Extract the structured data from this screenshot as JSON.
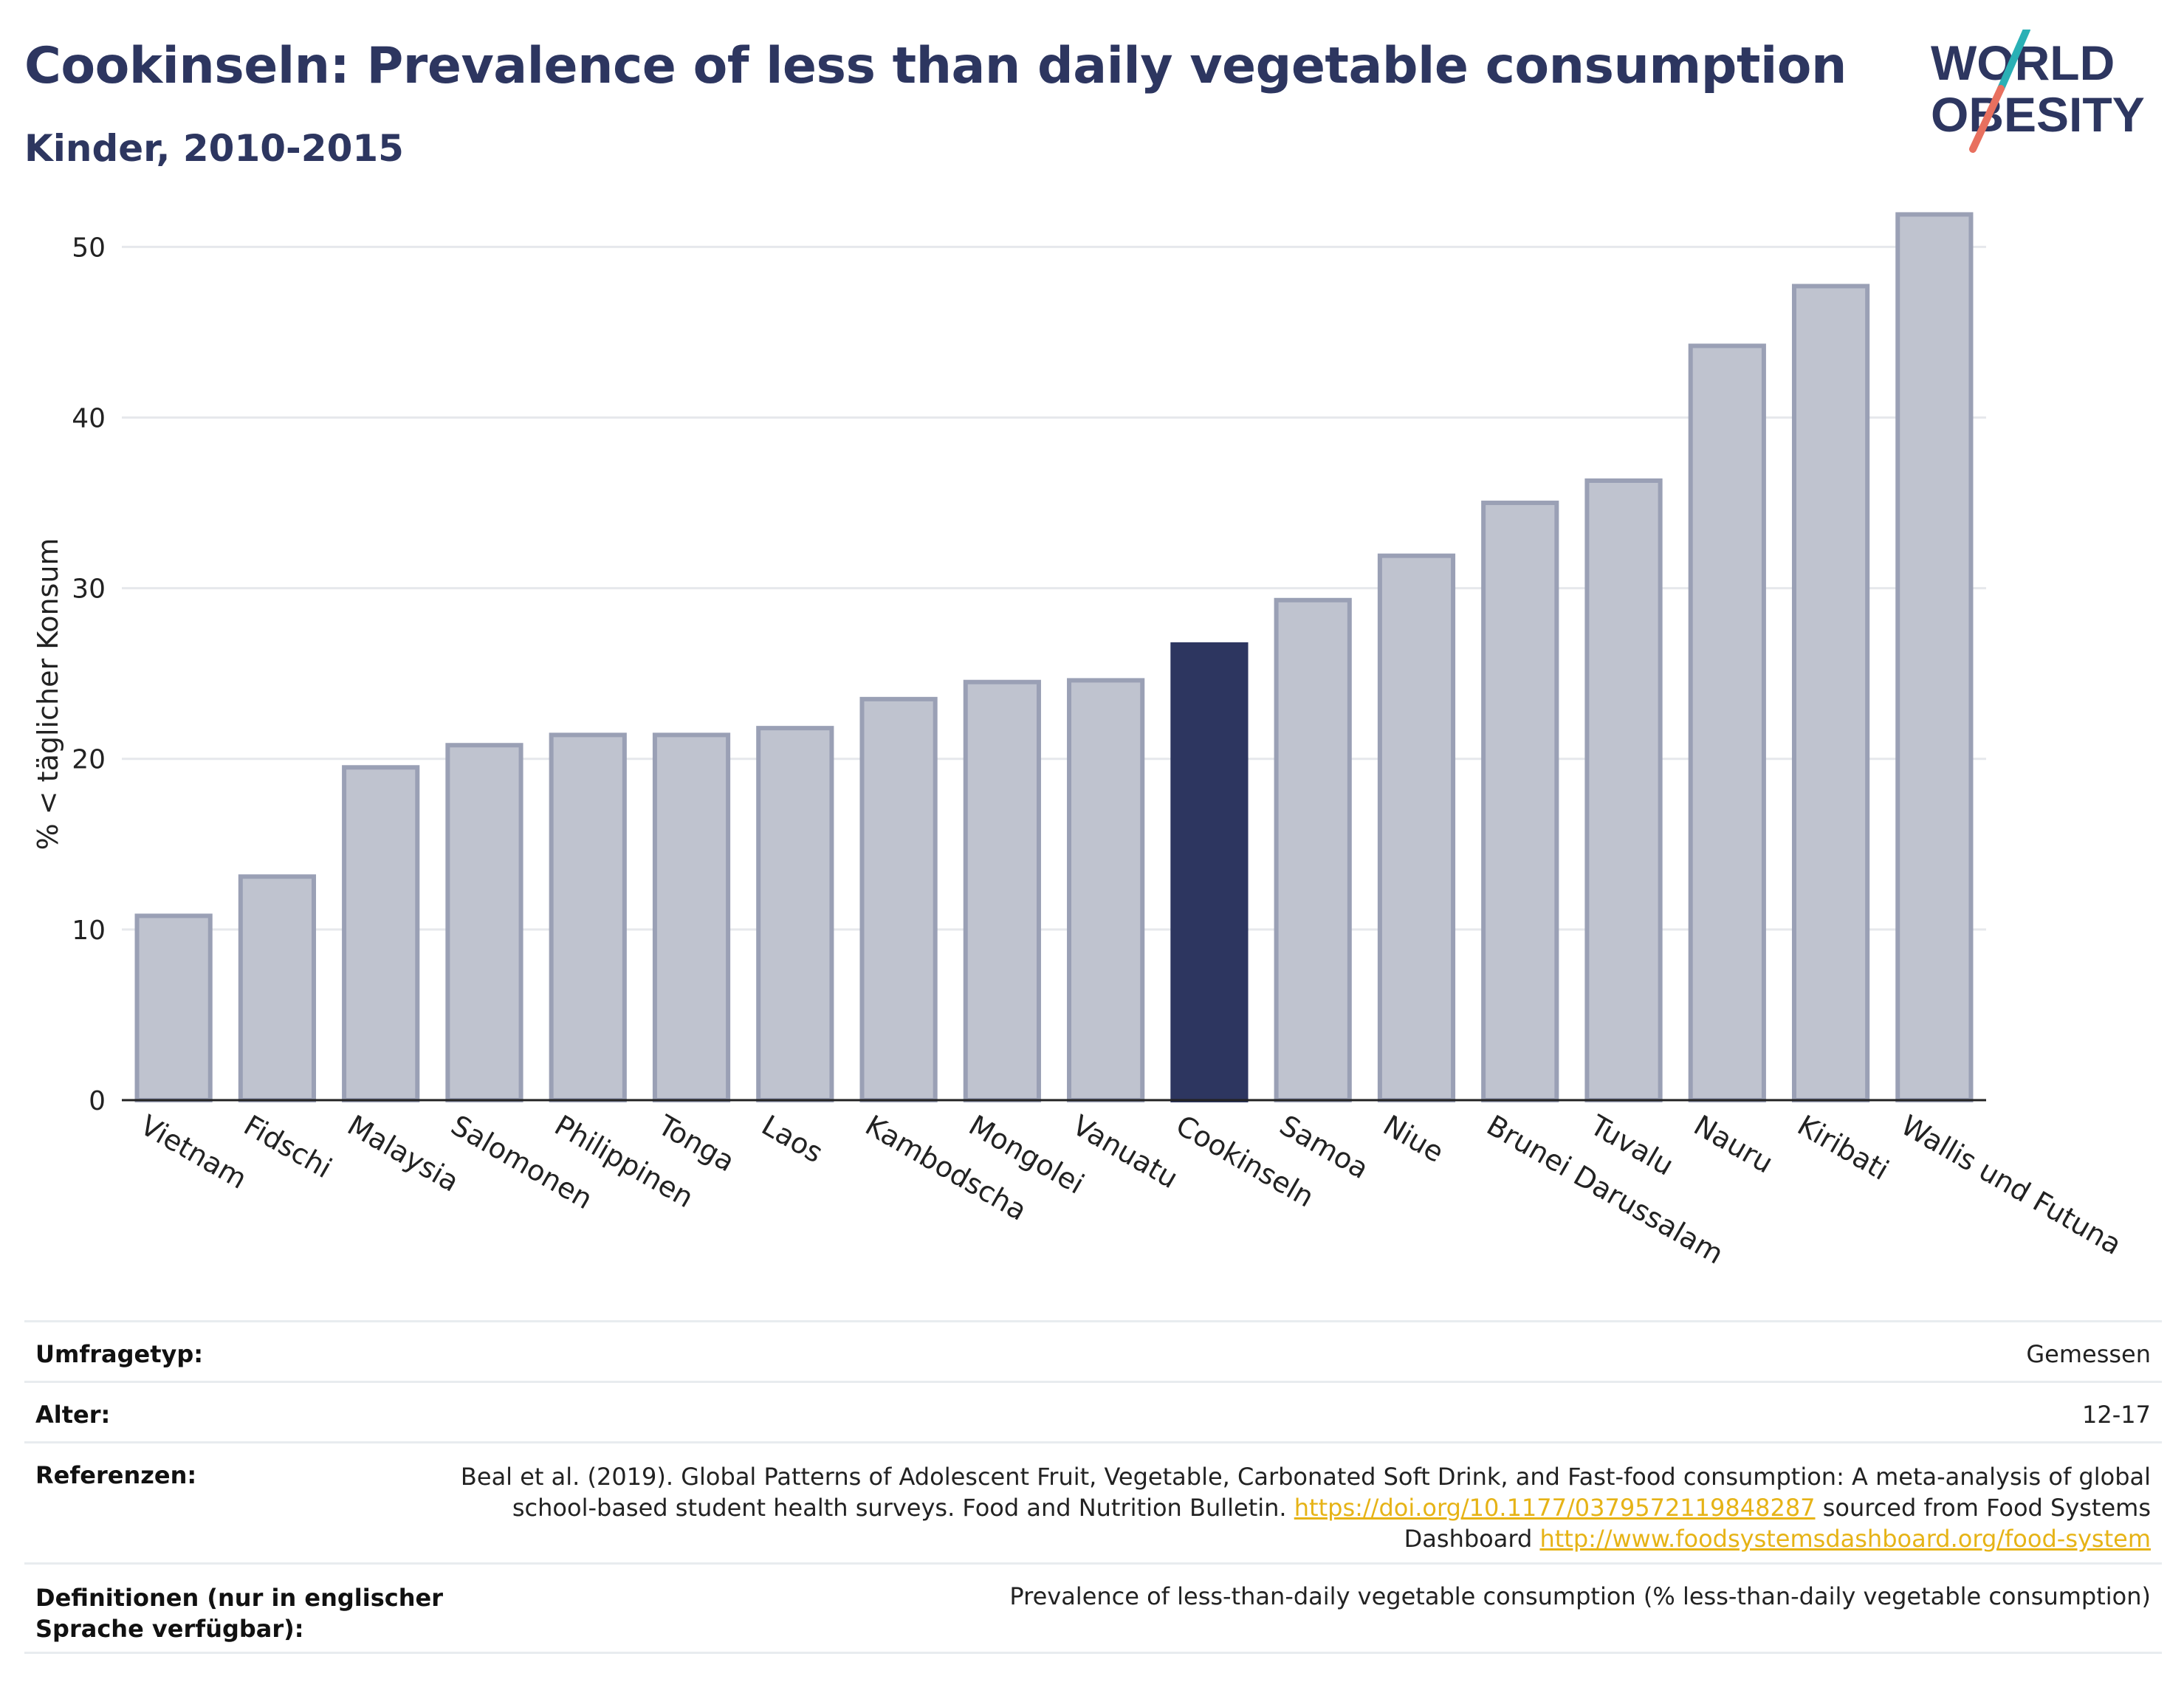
{
  "header": {
    "title": "Cookinseln: Prevalence of less than daily vegetable consumption",
    "subtitle": "Kinder, 2010-2015"
  },
  "logo": {
    "line1": "WORLD",
    "line2": "OBESITY",
    "colors": {
      "text": "#2d3660",
      "slash_top": "#2ab0b5",
      "slash_bottom": "#e8705f"
    }
  },
  "chart_data": {
    "type": "bar",
    "ylabel": "% < täglicher Konsum",
    "ylim": [
      0,
      53
    ],
    "yticks": [
      0,
      10,
      20,
      30,
      40,
      50
    ],
    "grid": true,
    "highlight": "Cookinseln",
    "colors": {
      "bar": "#bfc3cf",
      "bar_edge": "#9aa0b5",
      "highlight": "#2d3660"
    },
    "categories": [
      "Vietnam",
      "Fidschi",
      "Malaysia",
      "Salomonen",
      "Philippinen",
      "Tonga",
      "Laos",
      "Kambodscha",
      "Mongolei",
      "Vanuatu",
      "Cookinseln",
      "Samoa",
      "Niue",
      "Brunei Darussalam",
      "Tuvalu",
      "Nauru",
      "Kiribati",
      "Wallis und Futuna"
    ],
    "values": [
      10.8,
      13.1,
      19.5,
      20.8,
      21.4,
      21.4,
      21.8,
      23.5,
      24.5,
      24.6,
      26.7,
      29.3,
      31.9,
      35.0,
      36.3,
      44.2,
      47.7,
      51.9
    ]
  },
  "meta": {
    "survey_label": "Umfragetyp:",
    "survey_value": "Gemessen",
    "age_label": "Alter:",
    "age_value": "12-17",
    "ref_label": "Referenzen:",
    "ref_text1": "Beal et al. (2019). Global Patterns of Adolescent Fruit, Vegetable, Carbonated Soft Drink, and Fast-food consumption: A meta-analysis of global school-based student health surveys. Food and Nutrition Bulletin. ",
    "ref_link1": "https://doi.org/10.1177/0379572119848287",
    "ref_text2": " sourced from Food Systems Dashboard ",
    "ref_link2": "http://www.foodsystemsdashboard.org/food-system",
    "def_label": "Definitionen (nur in englischer Sprache verfügbar):",
    "def_value": "Prevalence of less-than-daily vegetable consumption (% less-than-daily vegetable consumption)"
  }
}
